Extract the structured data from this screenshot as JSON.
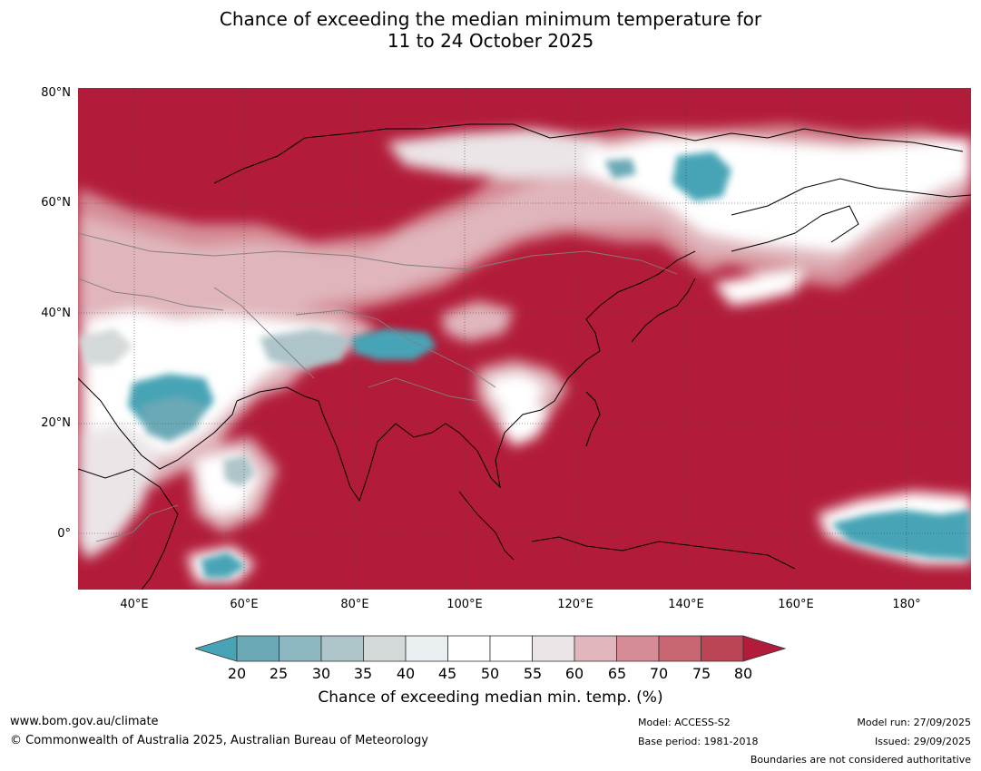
{
  "title": {
    "line1": "Chance of exceeding the median minimum temperature for",
    "line2": "11 to 24 October 2025"
  },
  "axes": {
    "lat_labels": [
      "80°N",
      "60°N",
      "40°N",
      "20°N",
      "0°"
    ],
    "lon_labels": [
      "40°E",
      "60°E",
      "80°E",
      "100°E",
      "120°E",
      "140°E",
      "160°E",
      "180°"
    ]
  },
  "colorbar": {
    "ticks": [
      "20",
      "25",
      "30",
      "35",
      "40",
      "45",
      "50",
      "55",
      "60",
      "65",
      "70",
      "75",
      "80"
    ],
    "colors": [
      "#46a4b6",
      "#6ca9b6",
      "#8db7c1",
      "#adc4c9",
      "#d3d8d8",
      "#eaf0f1",
      "#ffffff",
      "#ffffff",
      "#ebe5e7",
      "#e0b6bc",
      "#d58c96",
      "#c86672",
      "#bc4555",
      "#b21c3a"
    ],
    "label": "Chance of exceeding median min. temp. (%)"
  },
  "footer": {
    "website": "www.bom.gov.au/climate",
    "copyright": "© Commonwealth of Australia 2025, Australian Bureau of Meteorology",
    "model": "Model: ACCESS-S2",
    "base_period": "Base period: 1981-2018",
    "model_run": "Model run: 27/09/2025",
    "issued": "Issued: 29/09/2025",
    "disclaimer": "Boundaries are not considered authoritative"
  }
}
